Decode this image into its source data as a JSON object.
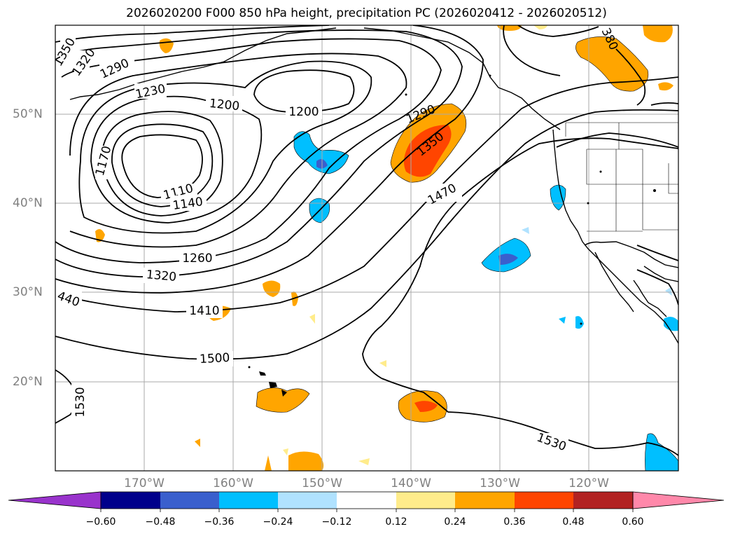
{
  "title": "2026020200 F000 850 hPa height, precipitation PC (2026020412 - 2026020512)",
  "map": {
    "projection": "cylindrical",
    "extent_lon": [
      -180,
      -110
    ],
    "extent_lat": [
      10,
      60
    ],
    "longitude_labels": [
      "170°W",
      "160°W",
      "150°W",
      "140°W",
      "130°W",
      "120°W"
    ],
    "latitude_labels": [
      "50°N",
      "40°N",
      "30°N",
      "20°N"
    ],
    "grid_color": "#aaaaaa"
  },
  "contours": {
    "color": "#000000",
    "labels": [
      "1350",
      "1320",
      "1290",
      "1230",
      "1200",
      "1200",
      "1170",
      "1110",
      "1140",
      "1260",
      "1320",
      "1410",
      "440",
      "1500",
      "1530",
      "1470",
      "1290",
      "1350",
      "380",
      "1530"
    ]
  },
  "colorbar": {
    "levels": [
      "−0.60",
      "−0.48",
      "−0.36",
      "−0.24",
      "−0.12",
      "0.12",
      "0.24",
      "0.36",
      "0.48",
      "0.60"
    ],
    "colors": [
      "#9933cc",
      "#00008b",
      "#3a5fcd",
      "#00bfff",
      "#b0e2ff",
      "#ffffff",
      "#ffec8b",
      "#ffa500",
      "#ff4500",
      "#b22222",
      "#ff88aa"
    ]
  }
}
